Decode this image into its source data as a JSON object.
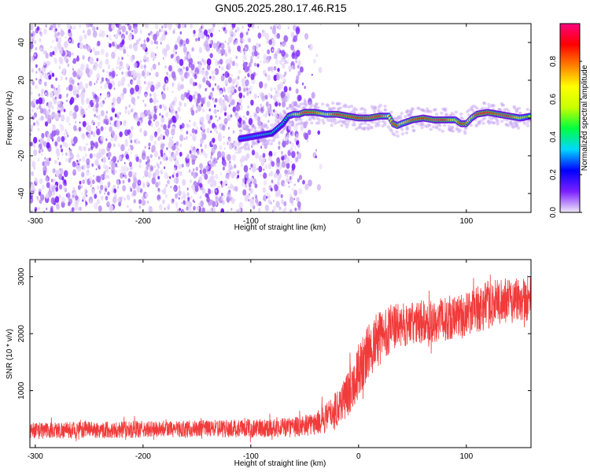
{
  "title": "GN05.2025.280.17.46.R15",
  "chart_data": [
    {
      "type": "heatmap",
      "xlabel": "Height of straight line (km)",
      "ylabel": "Frequency (Hz)",
      "xlim": [
        -305,
        160
      ],
      "ylim": [
        -50,
        50
      ],
      "xticks": [
        -300,
        -200,
        -100,
        0,
        100
      ],
      "yticks": [
        -40,
        -20,
        0,
        20,
        40
      ],
      "noise_region_end": -55,
      "colorbar": {
        "label": "Normalized spectral amplitude",
        "range": [
          0,
          1
        ],
        "ticks": [
          "0.0",
          "0.2",
          "0.4",
          "0.6",
          "0.8"
        ],
        "colors": [
          "#f0e8fa",
          "#7a20ff",
          "#0000ff",
          "#00d8ff",
          "#00ff40",
          "#c8ff00",
          "#ffff00",
          "#ff8000",
          "#ff0000",
          "#ff0080"
        ]
      },
      "ridge": {
        "x": [
          -110,
          -100,
          -90,
          -80,
          -70,
          -65,
          -60,
          -55,
          -50,
          -40,
          -30,
          -20,
          -10,
          0,
          10,
          20,
          28,
          32,
          36,
          40,
          50,
          60,
          70,
          80,
          90,
          95,
          100,
          105,
          110,
          120,
          130,
          140,
          150,
          160
        ],
        "y": [
          -11,
          -10,
          -9,
          -8,
          -3,
          1,
          2,
          2,
          3,
          3,
          2,
          2,
          1,
          0,
          0,
          1,
          1,
          -3,
          -4,
          -3,
          -1,
          0,
          -1,
          -1,
          -1,
          -3,
          -3,
          0,
          2,
          3,
          2,
          1,
          0,
          1
        ]
      },
      "ridge_intensity": [
        0.3,
        0.3,
        0.35,
        0.4,
        0.35,
        0.45,
        0.55,
        0.7,
        0.85,
        0.8,
        0.6,
        0.85,
        0.8,
        0.85,
        0.8,
        0.85,
        0.6,
        0.8,
        0.85,
        0.6,
        0.8,
        0.85,
        0.8,
        0.85,
        0.6,
        0.85,
        0.8,
        0.6,
        0.85,
        0.85,
        0.8,
        0.85,
        0.6,
        0.5
      ]
    },
    {
      "type": "line",
      "xlabel": "Height of straight line (km)",
      "ylabel": "SNR (10 * v/v)",
      "xlim": [
        -305,
        160
      ],
      "ylim": [
        0,
        3300
      ],
      "xticks": [
        -300,
        -200,
        -100,
        0,
        100
      ],
      "yticks": [
        1000,
        2000,
        3000
      ],
      "line_color": "#f03030",
      "series": [
        {
          "x": [
            -305,
            -250,
            -200,
            -150,
            -100,
            -60,
            -40,
            -30,
            -20,
            -10,
            0,
            10,
            20,
            30,
            40,
            60,
            80,
            100,
            120,
            140,
            160
          ],
          "center": [
            300,
            310,
            320,
            330,
            340,
            360,
            420,
            520,
            700,
            950,
            1350,
            1700,
            1950,
            2100,
            2150,
            2200,
            2250,
            2350,
            2500,
            2600,
            2650
          ],
          "spread": [
            150,
            150,
            150,
            150,
            160,
            180,
            200,
            260,
            330,
            420,
            480,
            500,
            480,
            420,
            380,
            380,
            380,
            400,
            420,
            420,
            420
          ]
        }
      ]
    }
  ]
}
